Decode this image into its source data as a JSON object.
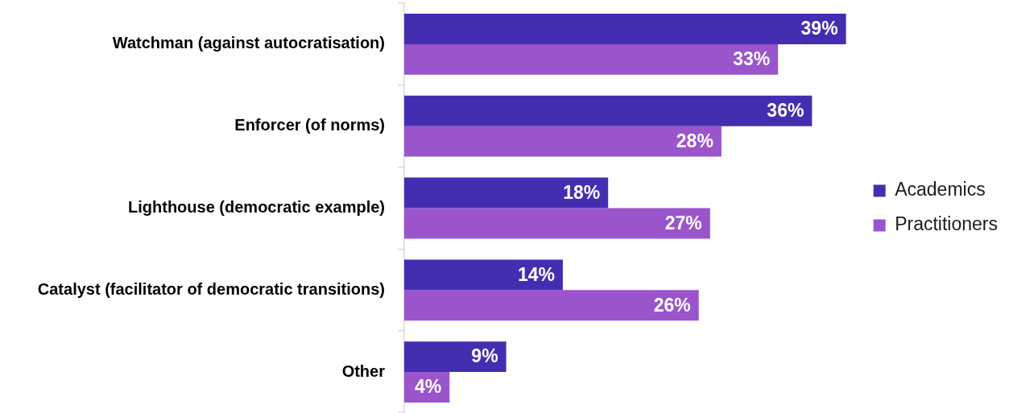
{
  "chart_data": {
    "type": "bar",
    "orientation": "horizontal",
    "categories": [
      "Watchman (against autocratisation)",
      "Enforcer (of norms)",
      "Lighthouse (democratic example)",
      "Catalyst (facilitator of democratic transitions)",
      "Other"
    ],
    "series": [
      {
        "name": "Academics",
        "color": "#432eb2",
        "values": [
          39,
          36,
          18,
          14,
          9
        ],
        "value_labels": [
          "39%",
          "36%",
          "18%",
          "14%",
          "9%"
        ]
      },
      {
        "name": "Practitioners",
        "color": "#9a54cc",
        "values": [
          33,
          28,
          27,
          26,
          4
        ],
        "value_labels": [
          "33%",
          "28%",
          "27%",
          "26%",
          "4%"
        ]
      }
    ],
    "legend": "right",
    "tick_labels": "y"
  }
}
